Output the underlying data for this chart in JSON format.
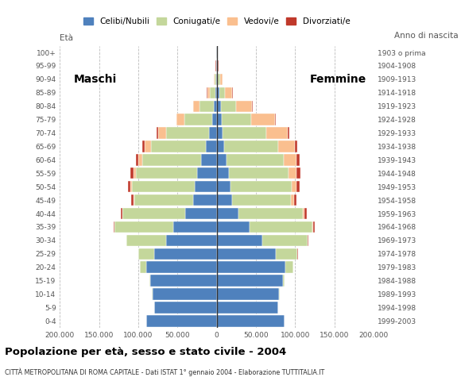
{
  "age_groups": [
    "0-4",
    "5-9",
    "10-14",
    "15-19",
    "20-24",
    "25-29",
    "30-34",
    "35-39",
    "40-44",
    "45-49",
    "50-54",
    "55-59",
    "60-64",
    "65-69",
    "70-74",
    "75-79",
    "80-84",
    "85-89",
    "90-94",
    "95-99",
    "100+"
  ],
  "birth_years": [
    "1999-2003",
    "1994-1998",
    "1989-1993",
    "1984-1988",
    "1979-1983",
    "1974-1978",
    "1969-1973",
    "1964-1968",
    "1959-1963",
    "1954-1958",
    "1949-1953",
    "1944-1948",
    "1939-1943",
    "1934-1938",
    "1929-1933",
    "1924-1928",
    "1919-1923",
    "1914-1918",
    "1909-1913",
    "1904-1908",
    "1903 o prima"
  ],
  "colors": {
    "celibe": "#4f81bd",
    "coniugato": "#c4d79b",
    "vedovo": "#fabf8f",
    "divorziato": "#c0392b"
  },
  "male": {
    "celibe": [
      90000,
      80000,
      82000,
      85000,
      90000,
      80000,
      65000,
      55000,
      40000,
      30000,
      28000,
      25000,
      20000,
      14000,
      10000,
      6000,
      4000,
      2000,
      800,
      300,
      200
    ],
    "coniugato": [
      100,
      200,
      500,
      1000,
      8000,
      20000,
      50000,
      75000,
      80000,
      75000,
      80000,
      78000,
      75000,
      70000,
      55000,
      35000,
      18000,
      7000,
      2000,
      500,
      100
    ],
    "vedovo": [
      5,
      5,
      5,
      10,
      20,
      50,
      100,
      200,
      500,
      1000,
      2000,
      3000,
      5000,
      8000,
      10000,
      10000,
      8000,
      3000,
      1000,
      300,
      50
    ],
    "divorziato": [
      5,
      10,
      20,
      50,
      100,
      200,
      500,
      1500,
      2000,
      3000,
      3500,
      4000,
      3500,
      2500,
      1500,
      800,
      500,
      300,
      100,
      50,
      10
    ]
  },
  "female": {
    "celibe": [
      87000,
      78000,
      80000,
      85000,
      88000,
      75000,
      58000,
      42000,
      28000,
      20000,
      18000,
      16000,
      13000,
      10000,
      8000,
      6000,
      5000,
      3000,
      1500,
      500,
      200
    ],
    "coniugato": [
      100,
      200,
      600,
      1500,
      10000,
      28000,
      58000,
      80000,
      82000,
      75000,
      78000,
      76000,
      73000,
      68000,
      55000,
      38000,
      20000,
      8000,
      2500,
      600,
      100
    ],
    "vedovo": [
      5,
      5,
      10,
      20,
      50,
      100,
      300,
      800,
      2000,
      3500,
      6000,
      10000,
      16000,
      22000,
      28000,
      30000,
      20000,
      9000,
      3000,
      800,
      100
    ],
    "divorziato": [
      5,
      10,
      20,
      50,
      100,
      250,
      600,
      2000,
      3000,
      3500,
      4000,
      4500,
      4000,
      3000,
      2000,
      1000,
      600,
      300,
      100,
      50,
      10
    ]
  },
  "title": "Popolazione per età, sesso e stato civile - 2004",
  "subtitle": "CITTÀ METROPOLITANA DI ROMA CAPITALE - Dati ISTAT 1° gennaio 2004 - Elaborazione TUTTITALIA.IT",
  "label_eta": "Età",
  "label_anno": "Anno di nascita",
  "label_maschi": "Maschi",
  "label_femmine": "Femmine",
  "legend_labels": [
    "Celibi/Nubili",
    "Coniugati/e",
    "Vedovi/e",
    "Divorziati/e"
  ],
  "xlim": 200000,
  "xticklabels": [
    "200.000",
    "150.000",
    "100.000",
    "50.000",
    "0",
    "50.000",
    "100.000",
    "150.000",
    "200.000"
  ],
  "bg_color": "#ffffff",
  "grid_color": "#bbbbbb",
  "bar_height": 0.85
}
